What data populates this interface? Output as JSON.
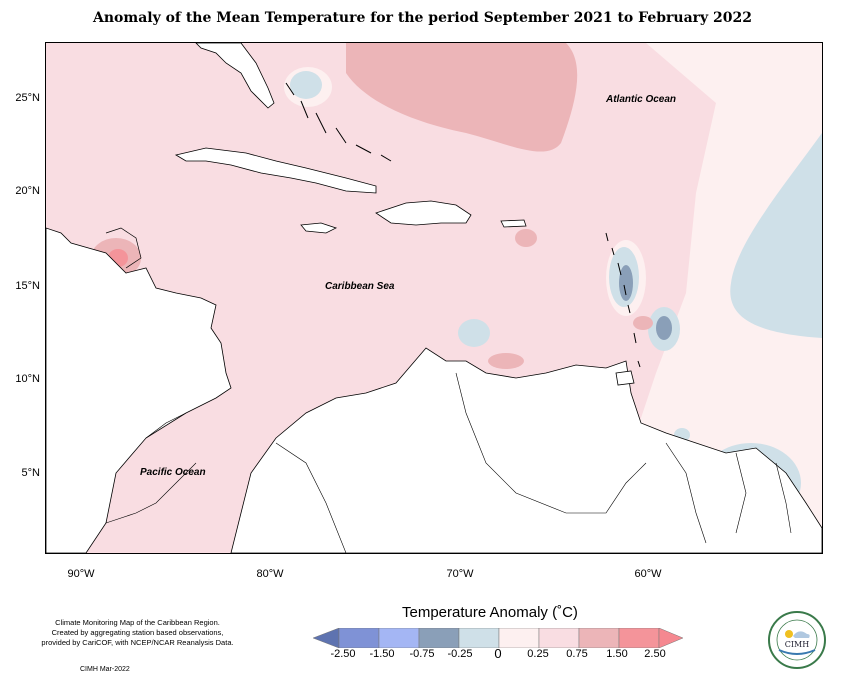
{
  "title": "Anomaly of the Mean Temperature for the period September 2021 to February 2022",
  "lat_labels": [
    "25°N",
    "20°N",
    "15°N",
    "10°N",
    "5°N"
  ],
  "lon_labels": [
    "90°W",
    "80°W",
    "70°W",
    "60°W"
  ],
  "ocean_labels": {
    "atlantic": "Atlantic Ocean",
    "caribbean": "Caribbean Sea",
    "pacific": "Pacific Ocean"
  },
  "credits": {
    "line1": "Climate Monitoring Map of the Caribbean Region.",
    "line2": "Created by aggregating station based observations,",
    "line3": "provided by CariCOF, with NCEP/NCAR Reanalysis Data.",
    "date": "CIMH Mar-2022"
  },
  "legend": {
    "title": "Temperature Anomaly (˚C)",
    "ticks": [
      "-2.50",
      "-1.50",
      "-0.75",
      "-0.25",
      "0",
      "0.25",
      "0.75",
      "1.50",
      "2.50"
    ],
    "colors": [
      "#5e73b0",
      "#7f92d6",
      "#a4b6f4",
      "#8a9fb8",
      "#cfe0e8",
      "#fdf0f0",
      "#f9dde2",
      "#ecb5b8",
      "#f4949a",
      "#f58890"
    ]
  },
  "logo": {
    "text": "CIMH"
  }
}
